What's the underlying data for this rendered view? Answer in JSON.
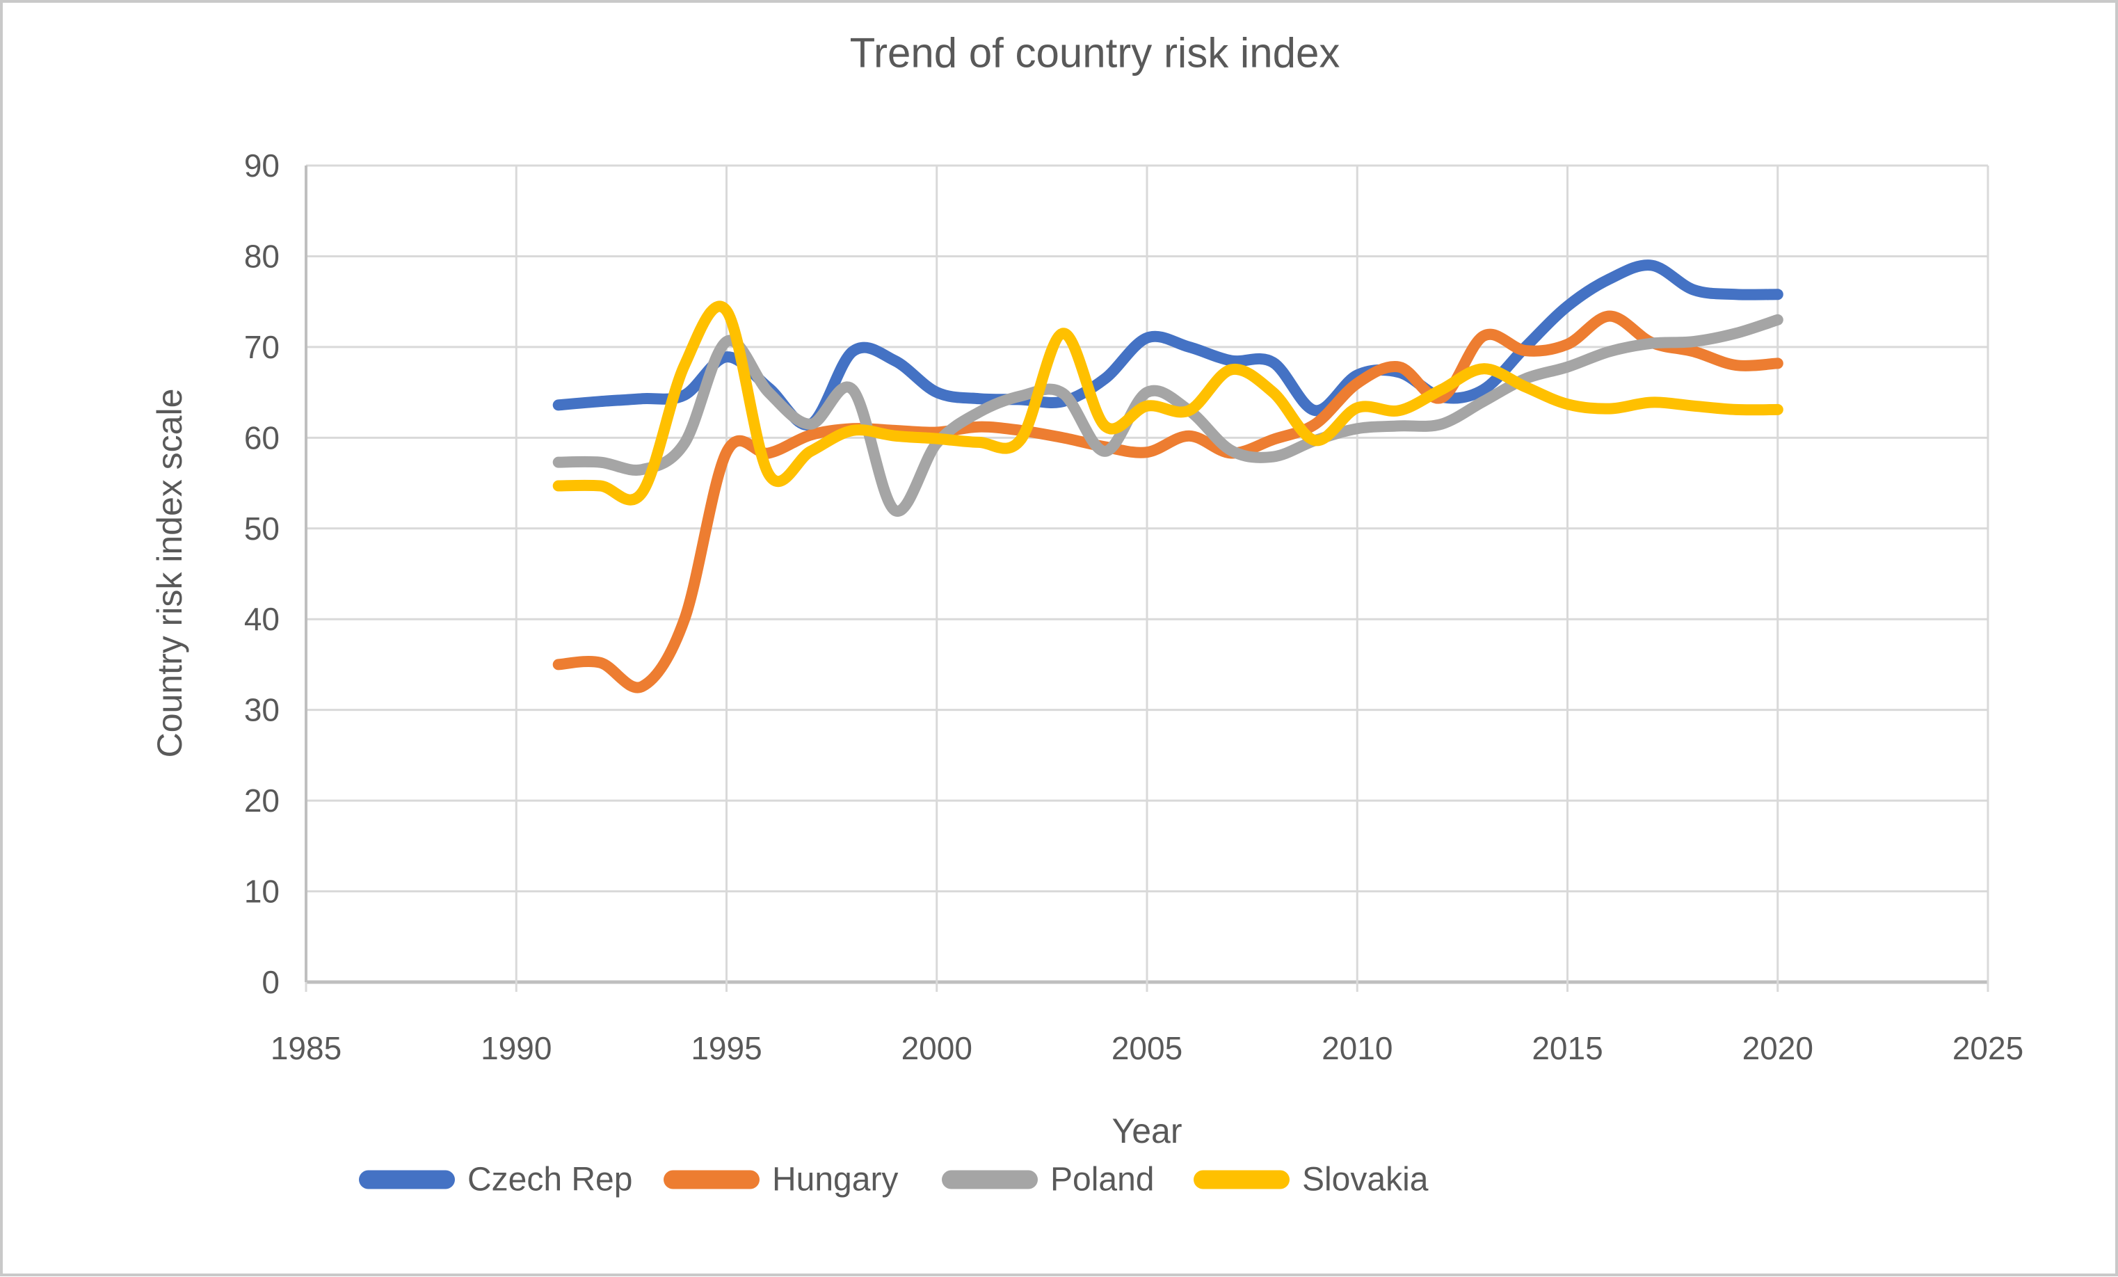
{
  "chart_data": {
    "type": "line",
    "title": "Trend of country risk index",
    "xlabel": "Year",
    "ylabel": "Country risk index scale",
    "xlim": [
      1985,
      2025
    ],
    "ylim": [
      0,
      90
    ],
    "x_ticks": [
      1985,
      1990,
      1995,
      2000,
      2005,
      2010,
      2015,
      2020,
      2025
    ],
    "y_ticks": [
      0,
      10,
      20,
      30,
      40,
      50,
      60,
      70,
      80,
      90
    ],
    "grid": true,
    "smooth": true,
    "legend_position": "bottom",
    "x": [
      1991,
      1992,
      1993,
      1994,
      1995,
      1996,
      1997,
      1998,
      1999,
      2000,
      2001,
      2002,
      2003,
      2004,
      2005,
      2006,
      2007,
      2008,
      2009,
      2010,
      2011,
      2012,
      2013,
      2014,
      2015,
      2016,
      2017,
      2018,
      2019,
      2020
    ],
    "series": [
      {
        "name": "Czech Rep",
        "color": "#4472C4",
        "values": [
          63.6,
          64.0,
          64.3,
          64.7,
          68.9,
          65.5,
          61.5,
          69.5,
          68.5,
          65.0,
          64.3,
          64.2,
          64.0,
          66.5,
          71.0,
          70.0,
          68.5,
          68.3,
          63.0,
          66.9,
          67.2,
          64.5,
          65.3,
          70.0,
          74.5,
          77.5,
          79.0,
          76.3,
          75.8,
          75.8
        ]
      },
      {
        "name": "Hungary",
        "color": "#ED7D31",
        "values": [
          35.0,
          35.2,
          32.6,
          40.0,
          58.4,
          58.3,
          60.3,
          61.0,
          60.8,
          60.6,
          61.2,
          60.8,
          60.0,
          59.0,
          58.4,
          60.2,
          58.3,
          59.8,
          61.5,
          66.0,
          67.8,
          64.4,
          71.2,
          69.6,
          70.3,
          73.4,
          70.5,
          69.5,
          68.0,
          68.2
        ]
      },
      {
        "name": "Poland",
        "color": "#A5A5A5",
        "values": [
          57.3,
          57.3,
          56.5,
          59.4,
          70.6,
          65.0,
          61.5,
          65.3,
          52.0,
          59.4,
          62.8,
          64.6,
          64.9,
          58.5,
          65.0,
          63.0,
          58.6,
          57.9,
          59.7,
          61.0,
          61.3,
          61.5,
          64.0,
          66.5,
          67.8,
          69.5,
          70.4,
          70.6,
          71.5,
          73.0
        ]
      },
      {
        "name": "Slovakia",
        "color": "#FFC000",
        "values": [
          54.7,
          54.7,
          54.0,
          68.0,
          74.0,
          56.0,
          58.5,
          60.8,
          60.2,
          59.9,
          59.5,
          59.8,
          71.5,
          61.3,
          63.5,
          63.0,
          67.5,
          65.0,
          59.7,
          63.3,
          63.0,
          65.3,
          67.6,
          65.6,
          63.7,
          63.2,
          63.9,
          63.5,
          63.1,
          63.1
        ]
      }
    ]
  },
  "styles": {
    "text_color": "#595959",
    "grid_color": "#D9D9D9",
    "axis_color": "#BFBFBF",
    "background": "#FFFFFF",
    "border_color": "#C9C9C9"
  }
}
